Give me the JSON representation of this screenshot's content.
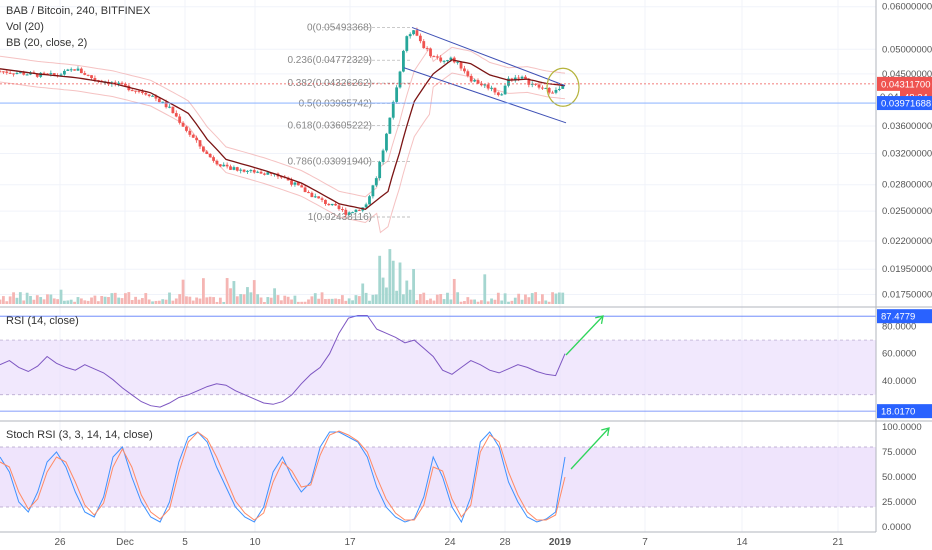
{
  "legend": {
    "symbol": "BAB / Bitcoin, 240, BITFINEX",
    "vol": "Vol (20)",
    "bb": "BB (20, close, 2)",
    "rsi": "RSI (14, close)",
    "stoch": "Stoch RSI (3, 3, 14, 14, close)"
  },
  "colors": {
    "up": "#26a69a",
    "down": "#ef5350",
    "ma": "#7b1414",
    "bb_band": "#ef9a9a",
    "channel": "#3f51b5",
    "fib": "#aaaaaa",
    "rsi_line": "#7e57c2",
    "rsi_zone": "#e6d5fb",
    "stoch_k": "#3f92ff",
    "stoch_d": "#ff8a65",
    "arrow": "#2fd55b",
    "circle": "#b5b33c",
    "last_price_badge": "#ef5350",
    "blue_badge": "#2962ff"
  },
  "chart_data": [
    {
      "type": "candlestick",
      "title": "BAB / Bitcoin, 240, BITFINEX",
      "x_ticks": [
        "26",
        "Dec",
        "5",
        "10",
        "17",
        "24",
        "28",
        "2019",
        "7",
        "14",
        "21"
      ],
      "y_ticks": [
        "0.06000000",
        "0.05000000",
        "0.04500000",
        "0.03600000",
        "0.03200000",
        "0.02800000",
        "0.02500000",
        "0.02200000",
        "0.01950000",
        "0.01750000"
      ],
      "ylim": [
        0.0168,
        0.0607
      ],
      "y_scale": "log",
      "price_path": [
        [
          0,
          0.0455
        ],
        [
          5,
          0.0452
        ],
        [
          10,
          0.0448
        ],
        [
          15,
          0.0447
        ],
        [
          20,
          0.046
        ],
        [
          25,
          0.044
        ],
        [
          30,
          0.0432
        ],
        [
          35,
          0.0422
        ],
        [
          40,
          0.0412
        ],
        [
          45,
          0.0388
        ],
        [
          50,
          0.035
        ],
        [
          55,
          0.0318
        ],
        [
          60,
          0.03
        ],
        [
          65,
          0.0298
        ],
        [
          70,
          0.0295
        ],
        [
          75,
          0.029
        ],
        [
          80,
          0.0275
        ],
        [
          85,
          0.0262
        ],
        [
          90,
          0.0252
        ],
        [
          92,
          0.0248
        ],
        [
          97,
          0.0255
        ],
        [
          100,
          0.029
        ],
        [
          103,
          0.0355
        ],
        [
          106,
          0.045
        ],
        [
          108,
          0.053
        ],
        [
          110,
          0.054
        ],
        [
          113,
          0.05
        ],
        [
          115,
          0.0485
        ],
        [
          118,
          0.0475
        ],
        [
          120,
          0.048
        ],
        [
          123,
          0.046
        ],
        [
          125,
          0.044
        ],
        [
          128,
          0.043
        ],
        [
          130,
          0.0425
        ],
        [
          133,
          0.041
        ],
        [
          135,
          0.044
        ],
        [
          138,
          0.0445
        ],
        [
          140,
          0.0435
        ],
        [
          143,
          0.0425
        ],
        [
          145,
          0.042
        ],
        [
          148,
          0.0418
        ],
        [
          150,
          0.0431
        ]
      ],
      "ma_path": [
        [
          0,
          0.046
        ],
        [
          10,
          0.045
        ],
        [
          20,
          0.0443
        ],
        [
          30,
          0.0432
        ],
        [
          40,
          0.0415
        ],
        [
          50,
          0.038
        ],
        [
          55,
          0.034
        ],
        [
          60,
          0.0312
        ],
        [
          70,
          0.0298
        ],
        [
          80,
          0.0282
        ],
        [
          90,
          0.0258
        ],
        [
          97,
          0.0252
        ],
        [
          103,
          0.0272
        ],
        [
          106,
          0.032
        ],
        [
          110,
          0.04
        ],
        [
          115,
          0.045
        ],
        [
          120,
          0.0478
        ],
        [
          125,
          0.047
        ],
        [
          130,
          0.0448
        ],
        [
          135,
          0.0438
        ],
        [
          140,
          0.044
        ],
        [
          145,
          0.0432
        ],
        [
          150,
          0.0428
        ]
      ],
      "fibonacci": [
        {
          "ratio": "0",
          "label": "0(0.05493368)",
          "value": 0.05493368
        },
        {
          "ratio": "0.236",
          "label": "0.236(0.04772329)",
          "value": 0.04772329
        },
        {
          "ratio": "0.382",
          "label": "0.382(0.04326262)",
          "value": 0.04326262
        },
        {
          "ratio": "0.5",
          "label": "0.5(0.03965742)",
          "value": 0.03965742
        },
        {
          "ratio": "0.618",
          "label": "0.618(0.03605222)",
          "value": 0.03605222
        },
        {
          "ratio": "0.786",
          "label": "0.786(0.03091940)",
          "value": 0.0309194
        },
        {
          "ratio": "1",
          "label": "1(0.02438116)",
          "value": 0.02438116
        }
      ],
      "price_badges": [
        {
          "label": "0.04311700",
          "value": 0.043117,
          "color": "last_price"
        },
        {
          "label": "48:24",
          "value": 0.042,
          "color": "last_price"
        },
        {
          "label": "0.04",
          "value": 0.0405,
          "color": "none"
        },
        {
          "label": "0.03971688",
          "value": 0.03971688,
          "color": "blue"
        }
      ]
    },
    {
      "type": "line",
      "title": "RSI (14, close)",
      "y_ticks": [
        "80.0000",
        "60.0000",
        "40.0000"
      ],
      "ylim": [
        13,
        92
      ],
      "bands": [
        30,
        70
      ],
      "levels": [
        {
          "label": "87.4779",
          "value": 87.4779
        },
        {
          "label": "18.0170",
          "value": 18.017
        }
      ],
      "series": [
        {
          "values": [
            52,
            55,
            50,
            47,
            51,
            58,
            53,
            50,
            48,
            52,
            49,
            46,
            41,
            35,
            30,
            25,
            22,
            21,
            24,
            28,
            30,
            33,
            36,
            38,
            37,
            33,
            30,
            27,
            24,
            23,
            25,
            30,
            38,
            45,
            50,
            60,
            75,
            86,
            88,
            88,
            78,
            75,
            72,
            68,
            70,
            64,
            58,
            48,
            45,
            50,
            55,
            52,
            48,
            46,
            49,
            52,
            50,
            47,
            45,
            44,
            60
          ]
        }
      ]
    },
    {
      "type": "line",
      "title": "Stoch RSI (3, 3, 14, 14, close)",
      "y_ticks": [
        "100.0000",
        "75.0000",
        "50.0000",
        "25.0000",
        "0.0000"
      ],
      "ylim": [
        -3,
        103
      ],
      "bands": [
        20,
        80
      ],
      "series": [
        {
          "values": [
            70,
            55,
            25,
            15,
            35,
            65,
            75,
            60,
            35,
            15,
            10,
            30,
            70,
            80,
            50,
            25,
            10,
            5,
            25,
            65,
            90,
            95,
            85,
            60,
            40,
            20,
            10,
            5,
            20,
            55,
            70,
            50,
            35,
            45,
            80,
            95,
            95,
            90,
            85,
            70,
            40,
            20,
            10,
            5,
            8,
            30,
            70,
            50,
            20,
            5,
            30,
            85,
            95,
            80,
            45,
            25,
            10,
            5,
            8,
            15,
            70
          ]
        },
        {
          "values": [
            65,
            60,
            35,
            18,
            28,
            55,
            70,
            65,
            45,
            22,
            12,
            24,
            60,
            78,
            60,
            32,
            15,
            8,
            18,
            55,
            85,
            95,
            88,
            70,
            48,
            26,
            14,
            7,
            14,
            45,
            65,
            56,
            40,
            42,
            72,
            92,
            96,
            92,
            86,
            75,
            50,
            28,
            14,
            7,
            7,
            22,
            60,
            56,
            28,
            10,
            22,
            75,
            92,
            85,
            55,
            32,
            15,
            7,
            7,
            12,
            50
          ]
        }
      ]
    }
  ]
}
